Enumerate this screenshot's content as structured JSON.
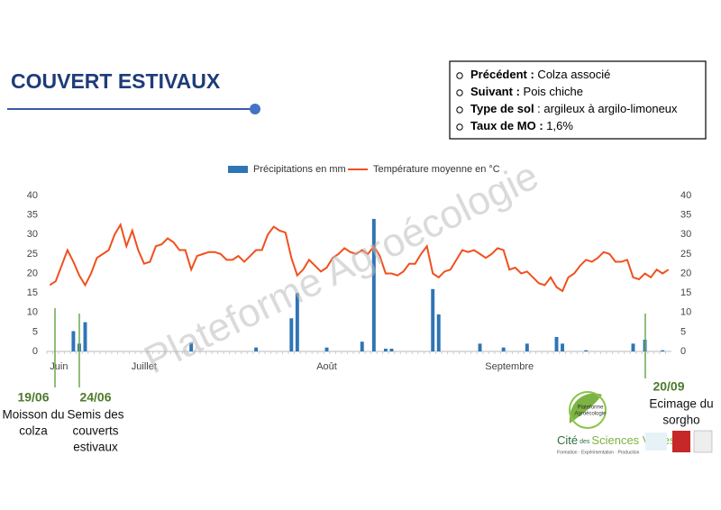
{
  "slide": {
    "title": "COUVERT ESTIVAUX",
    "info": [
      {
        "label": "Précédent :",
        "text": " Colza associé"
      },
      {
        "label": "Suivant :",
        "text": " Pois chiche"
      },
      {
        "label": "Type de sol",
        "text": " : argileux à argilo-limoneux"
      },
      {
        "label": "Taux de MO :",
        "text": " 1,6%"
      }
    ],
    "watermark": "Plateforme Agroécologie",
    "annotations": [
      {
        "date": "19/06",
        "lines": [
          "Moisson du",
          "colza"
        ]
      },
      {
        "date": "24/06",
        "lines": [
          "Semis des",
          "couverts",
          "estivaux"
        ]
      },
      {
        "date": "20/09",
        "lines": [
          "Ecimage du",
          "sorgho"
        ]
      }
    ],
    "logo": {
      "top": [
        "Plateforme",
        "Agroécologie"
      ],
      "name_a": "Cité",
      "name_b": "des",
      "name_c": "Sciences Vertes",
      "tagline": "Formation · Expérimentation · Production"
    }
  },
  "chart_data": {
    "type": "bar-line",
    "categories": [
      "Juin",
      null,
      null,
      null,
      null,
      null,
      null,
      null,
      null,
      null,
      null,
      null,
      null,
      null,
      null,
      null,
      "Juillet",
      null,
      null,
      null,
      null,
      null,
      null,
      null,
      null,
      null,
      null,
      null,
      null,
      null,
      null,
      null,
      null,
      null,
      null,
      null,
      null,
      null,
      null,
      null,
      null,
      null,
      null,
      null,
      null,
      null,
      null,
      "Août",
      null,
      null,
      null,
      null,
      null,
      null,
      null,
      null,
      null,
      null,
      null,
      null,
      null,
      null,
      null,
      null,
      null,
      null,
      null,
      null,
      null,
      null,
      null,
      null,
      null,
      null,
      null,
      null,
      null,
      null,
      "Septembre",
      null,
      null,
      null,
      null,
      null,
      null,
      null,
      null,
      null,
      null,
      null,
      null,
      null,
      null,
      null,
      null,
      null,
      null,
      null,
      null,
      null,
      null,
      null,
      null,
      null,
      null,
      null
    ],
    "series": [
      {
        "name": "Précipitations en mm",
        "type": "bar",
        "color": "#2e75b6",
        "values": [
          0,
          0,
          0,
          0,
          5.2,
          2,
          7.5,
          0,
          0,
          0,
          0,
          0,
          0,
          0,
          0,
          0,
          0,
          0,
          0,
          0,
          0,
          0,
          0,
          0,
          2.2,
          0,
          0,
          0,
          0,
          0,
          0,
          0,
          0,
          0,
          0,
          1,
          0,
          0,
          0,
          0,
          0,
          8.5,
          15,
          0,
          0,
          0,
          0,
          1,
          0,
          0,
          0,
          0,
          0,
          2.5,
          0,
          34,
          0,
          0.7,
          0.7,
          0,
          0,
          0,
          0,
          0,
          0,
          16,
          9.5,
          0,
          0,
          0,
          0,
          0,
          0,
          2,
          0,
          0,
          0,
          1,
          0,
          0,
          0,
          2,
          0,
          0,
          0,
          0,
          3.7,
          2,
          0,
          0,
          0,
          0.3,
          0,
          0,
          0,
          0,
          0,
          0,
          0,
          2,
          0,
          3,
          0,
          0,
          0.3,
          0
        ]
      },
      {
        "name": "Température moyenne en °C",
        "type": "line",
        "axis": "y2",
        "color": "#f0501e",
        "values": [
          17,
          18,
          22,
          26,
          23,
          19.5,
          17,
          20,
          24,
          25,
          26,
          30,
          32.5,
          27,
          31,
          26,
          22.5,
          23,
          27,
          27.5,
          29,
          28,
          26,
          26,
          21,
          24.5,
          25,
          25.5,
          25.5,
          25,
          23.5,
          23.5,
          24.5,
          23,
          24.5,
          26,
          26,
          30,
          32,
          31,
          30.5,
          24,
          19.5,
          21,
          23.5,
          22,
          20.5,
          21.5,
          24,
          25,
          26.5,
          25.5,
          25,
          26,
          25,
          27,
          24.5,
          20,
          20,
          19.5,
          20.5,
          22.5,
          22.5,
          25,
          27,
          20,
          19,
          20.5,
          21,
          23.5,
          26,
          25.5,
          26,
          25,
          24,
          25,
          26.5,
          26,
          21,
          21.5,
          20,
          20.5,
          19,
          17.5,
          17,
          19,
          16.5,
          15.5,
          19,
          20,
          22,
          23.5,
          23,
          24,
          25.5,
          25,
          23,
          23,
          23.5,
          19,
          18.5,
          20,
          19,
          21,
          20,
          21
        ]
      }
    ],
    "ylim": [
      0,
      40
    ],
    "yticks": [
      0,
      5,
      10,
      15,
      20,
      25,
      30,
      35,
      40
    ],
    "y2lim": [
      0,
      40
    ],
    "y2ticks": [
      0,
      5,
      10,
      15,
      20,
      25,
      30,
      35,
      40
    ],
    "grid": false,
    "legend": "top"
  }
}
